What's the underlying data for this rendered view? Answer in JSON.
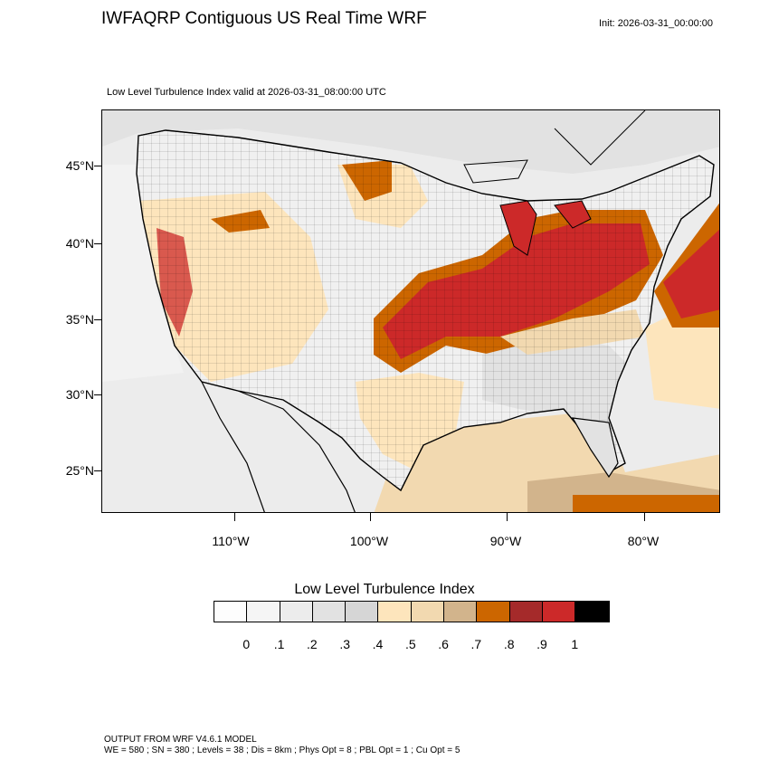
{
  "header": {
    "title": "IWFAQRP Contiguous US Real Time WRF",
    "init": "Init: 2026-03-31_00:00:00"
  },
  "map": {
    "subtitle": "Low Level Turbulence Index valid at 2026-03-31_08:00:00 UTC",
    "lat_labels": [
      "45°N",
      "40°N",
      "35°N",
      "30°N",
      "25°N"
    ],
    "lon_labels": [
      "110°W",
      "100°W",
      "90°W",
      "80°W"
    ],
    "colors": {
      "land_background": "#e6e6e6",
      "ocean_background": "#f0f0f0",
      "high_turbulence": "#cc2929",
      "moderate_turbulence": "#cc6600"
    }
  },
  "legend": {
    "title": "Low Level Turbulence Index",
    "colors": [
      "#fdfdfd",
      "#f5f5f5",
      "#ececec",
      "#e2e2e2",
      "#d6d6d6",
      "#fde5bc",
      "#f2d9b0",
      "#d2b48c",
      "#cc6600",
      "#a52a2a",
      "#cc2929",
      "#000000"
    ],
    "labels": [
      "0",
      ".1",
      ".2",
      ".3",
      ".4",
      ".5",
      ".6",
      ".7",
      ".8",
      ".9",
      "1"
    ]
  },
  "footer": {
    "line1": "OUTPUT FROM WRF V4.6.1 MODEL",
    "line2": "WE = 580 ; SN = 380 ; Levels = 38 ; Dis = 8km ; Phys Opt = 8 ; PBL Opt = 1 ; Cu Opt = 5"
  }
}
